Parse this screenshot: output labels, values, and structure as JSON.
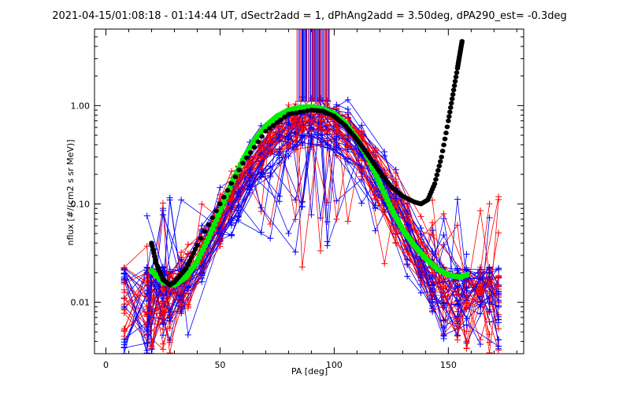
{
  "chart_data": {
    "type": "line",
    "title": "2021-04-15/01:08:18 - 01:14:44 UT, dSectr2add = 1, dPhAng2add = 3.50deg, dPA290_est=  -0.3deg",
    "xlabel": "PA [deg]",
    "ylabel": "nflux [#/(cm2 s sr MeV)]",
    "xlim": [
      -5,
      183
    ],
    "ylim": [
      0.003,
      6
    ],
    "yscale": "log",
    "x_ticks": [
      0,
      50,
      100,
      150
    ],
    "x_tick_labels": [
      "0",
      "50",
      "100",
      "150"
    ],
    "y_ticks": [
      0.01,
      0.1,
      1.0
    ],
    "y_tick_labels": [
      "0.01",
      "0.10",
      "1.00"
    ],
    "grid": false,
    "colors": {
      "red_series": "#ff0000",
      "blue_series": "#0000ff",
      "green_fit": "#00ee00",
      "black_fit": "#000000",
      "axes": "#000000",
      "background": "#ffffff"
    },
    "series": [
      {
        "color": "#00ee00",
        "style": "thick-dots",
        "x": [
          20,
          25,
          30,
          35,
          40,
          45,
          50,
          55,
          60,
          65,
          70,
          75,
          80,
          85,
          90,
          95,
          100,
          105,
          110,
          115,
          120,
          125,
          130,
          135,
          140,
          145,
          150,
          155,
          158
        ],
        "values": [
          0.021,
          0.016,
          0.015,
          0.018,
          0.026,
          0.045,
          0.085,
          0.16,
          0.28,
          0.44,
          0.62,
          0.78,
          0.9,
          0.96,
          0.97,
          0.93,
          0.83,
          0.66,
          0.46,
          0.29,
          0.16,
          0.09,
          0.055,
          0.038,
          0.028,
          0.022,
          0.019,
          0.018,
          0.019
        ]
      },
      {
        "color": "#000000",
        "style": "thick-dots",
        "x": [
          20,
          22,
          25,
          28,
          30,
          35,
          40,
          50,
          60,
          70,
          80,
          90,
          95,
          100,
          105,
          110,
          115,
          120,
          125,
          130,
          135,
          138,
          141,
          144,
          147,
          150,
          152,
          154,
          155,
          156
        ],
        "values": [
          0.04,
          0.025,
          0.017,
          0.015,
          0.016,
          0.022,
          0.038,
          0.1,
          0.26,
          0.55,
          0.82,
          0.9,
          0.88,
          0.78,
          0.62,
          0.45,
          0.31,
          0.21,
          0.15,
          0.12,
          0.105,
          0.1,
          0.11,
          0.16,
          0.3,
          0.7,
          1.3,
          2.4,
          3.3,
          4.5
        ]
      }
    ],
    "spike_bundle": {
      "x_range": [
        84,
        98
      ],
      "y_range": [
        1.1,
        6
      ]
    },
    "scatter_traces_note": "dense red and blue + traces across PA 8-172 deg"
  }
}
